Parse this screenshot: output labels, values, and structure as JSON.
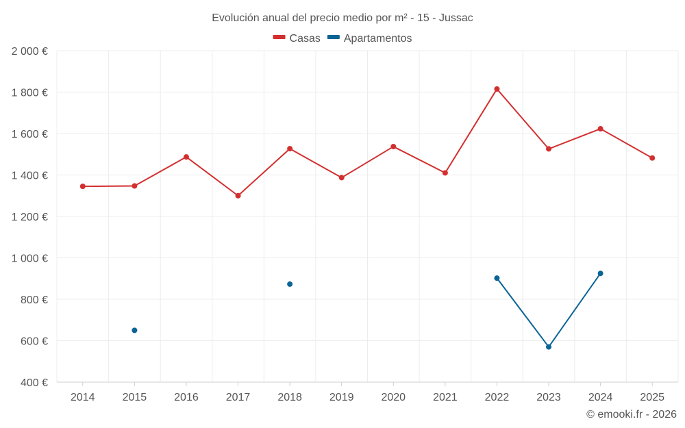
{
  "chart_data": {
    "type": "line",
    "title": "Evolución anual del precio medio por m² - 15 - Jussac",
    "categories": [
      "2014",
      "2015",
      "2016",
      "2017",
      "2018",
      "2019",
      "2020",
      "2021",
      "2022",
      "2023",
      "2024",
      "2025"
    ],
    "ylim": [
      400,
      2000
    ],
    "yticks": [
      400,
      600,
      800,
      1000,
      1200,
      1400,
      1600,
      1800,
      2000
    ],
    "ytick_labels": [
      "400 €",
      "600 €",
      "800 €",
      "1 000 €",
      "1 200 €",
      "1 400 €",
      "1 600 €",
      "1 800 €",
      "2 000 €"
    ],
    "grid": true,
    "legend_position": "top-center",
    "series": [
      {
        "name": "Casas",
        "color": "#d32f2f",
        "values": [
          1345,
          1347,
          1487,
          1300,
          1527,
          1387,
          1537,
          1410,
          1815,
          1526,
          1623,
          1482
        ]
      },
      {
        "name": "Apartamentos",
        "color": "#0a6496",
        "values": [
          null,
          650,
          null,
          null,
          873,
          null,
          null,
          null,
          902,
          570,
          925,
          null
        ]
      }
    ]
  },
  "credit": "© emooki.fr - 2026"
}
